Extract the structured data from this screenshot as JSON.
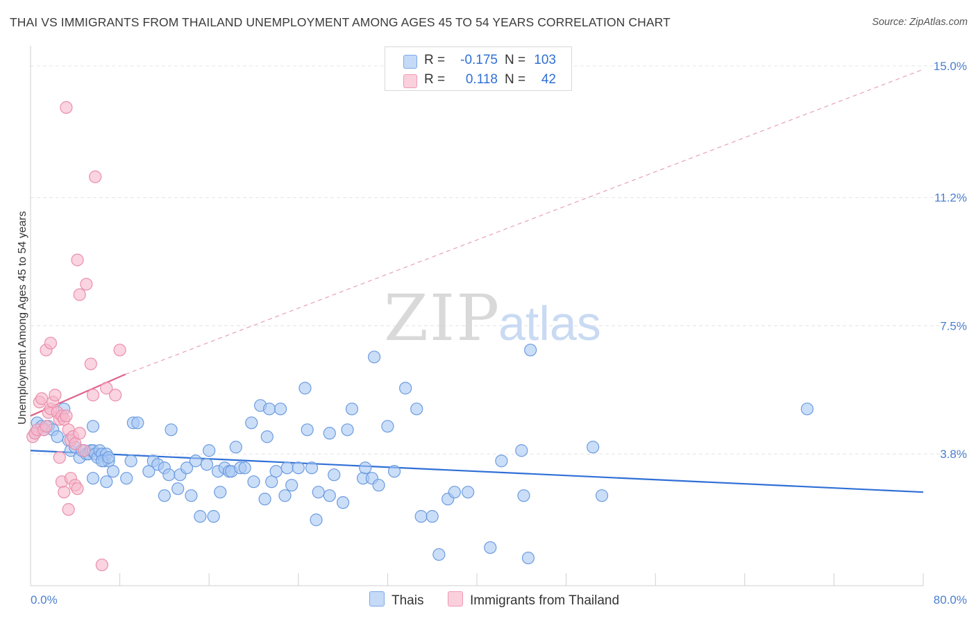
{
  "title": "THAI VS IMMIGRANTS FROM THAILAND UNEMPLOYMENT AMONG AGES 45 TO 54 YEARS CORRELATION CHART",
  "source": "Source: ZipAtlas.com",
  "watermark": {
    "zip": "ZIP",
    "atlas": "atlas"
  },
  "legend_top": [
    {
      "r_label": "R =",
      "r_value": "-0.175",
      "n_label": "N =",
      "n_value": "103",
      "color": "#a9c8f3"
    },
    {
      "r_label": "R =",
      "r_value": "0.118",
      "n_label": "N =",
      "n_value": "42",
      "color": "#f7b7cb"
    }
  ],
  "legend_bottom": [
    {
      "label": "Thais",
      "color": "#a9c8f3"
    },
    {
      "label": "Immigrants from Thailand",
      "color": "#f7b7cb"
    }
  ],
  "chart_data": {
    "type": "scatter",
    "title": "THAI VS IMMIGRANTS FROM THAILAND UNEMPLOYMENT AMONG AGES 45 TO 54 YEARS CORRELATION CHART",
    "xlabel": "",
    "ylabel": "Unemployment Among Ages 45 to 54 years",
    "xlim": [
      0,
      80
    ],
    "ylim": [
      0,
      15.5
    ],
    "x_tick_labels": [
      "0.0%",
      "80.0%"
    ],
    "y_ticks": [
      3.8,
      7.5,
      11.2,
      15.0
    ],
    "y_tick_labels": [
      "3.8%",
      "7.5%",
      "11.2%",
      "15.0%"
    ],
    "grid": true,
    "series": [
      {
        "name": "Thais",
        "color": "#a9c8f3",
        "stroke": "#6b9be0",
        "trend": {
          "x": [
            0,
            80
          ],
          "y": [
            3.9,
            2.7
          ],
          "color": "#2f6fd6",
          "dashed": false
        },
        "points": [
          [
            0.4,
            4.4
          ],
          [
            0.6,
            4.7
          ],
          [
            1.0,
            4.6
          ],
          [
            1.2,
            4.5
          ],
          [
            1.6,
            4.6
          ],
          [
            2.0,
            4.5
          ],
          [
            2.4,
            4.3
          ],
          [
            3.0,
            5.1
          ],
          [
            3.4,
            4.2
          ],
          [
            3.6,
            3.9
          ],
          [
            4.0,
            4.0
          ],
          [
            4.4,
            3.7
          ],
          [
            4.6,
            3.9
          ],
          [
            5.0,
            3.8
          ],
          [
            5.2,
            3.8
          ],
          [
            5.4,
            3.9
          ],
          [
            5.6,
            3.9
          ],
          [
            5.8,
            3.8
          ],
          [
            6.0,
            3.7
          ],
          [
            6.2,
            3.9
          ],
          [
            6.4,
            3.8
          ],
          [
            6.6,
            3.6
          ],
          [
            6.8,
            3.8
          ],
          [
            7.0,
            3.6
          ],
          [
            5.6,
            4.6
          ],
          [
            5.6,
            3.1
          ],
          [
            6.4,
            3.6
          ],
          [
            6.8,
            3.0
          ],
          [
            7.0,
            3.7
          ],
          [
            7.4,
            3.3
          ],
          [
            8.6,
            3.1
          ],
          [
            9.0,
            3.6
          ],
          [
            9.2,
            4.7
          ],
          [
            9.6,
            4.7
          ],
          [
            10.6,
            3.3
          ],
          [
            11.0,
            3.6
          ],
          [
            11.4,
            3.5
          ],
          [
            12.0,
            3.4
          ],
          [
            12.0,
            2.6
          ],
          [
            12.4,
            3.2
          ],
          [
            12.6,
            4.5
          ],
          [
            13.2,
            2.8
          ],
          [
            13.4,
            3.2
          ],
          [
            14.0,
            3.4
          ],
          [
            14.4,
            2.6
          ],
          [
            14.8,
            3.6
          ],
          [
            15.2,
            2.0
          ],
          [
            15.8,
            3.5
          ],
          [
            16.0,
            3.9
          ],
          [
            16.4,
            2.0
          ],
          [
            16.8,
            3.3
          ],
          [
            17.0,
            2.7
          ],
          [
            17.4,
            3.4
          ],
          [
            17.8,
            3.3
          ],
          [
            18.0,
            3.3
          ],
          [
            18.4,
            4.0
          ],
          [
            18.8,
            3.4
          ],
          [
            19.2,
            3.4
          ],
          [
            19.8,
            4.7
          ],
          [
            20.0,
            3.0
          ],
          [
            20.6,
            5.2
          ],
          [
            21.0,
            2.5
          ],
          [
            21.2,
            4.3
          ],
          [
            21.4,
            5.1
          ],
          [
            21.6,
            3.0
          ],
          [
            22.0,
            3.3
          ],
          [
            22.4,
            5.1
          ],
          [
            22.8,
            2.6
          ],
          [
            23.0,
            3.4
          ],
          [
            23.4,
            2.9
          ],
          [
            24.0,
            3.4
          ],
          [
            24.6,
            5.7
          ],
          [
            24.8,
            4.5
          ],
          [
            25.2,
            3.4
          ],
          [
            25.6,
            1.9
          ],
          [
            25.8,
            2.7
          ],
          [
            26.8,
            4.4
          ],
          [
            26.8,
            2.6
          ],
          [
            27.2,
            3.2
          ],
          [
            28.0,
            2.4
          ],
          [
            28.4,
            4.5
          ],
          [
            28.8,
            5.1
          ],
          [
            29.8,
            3.1
          ],
          [
            30.0,
            3.4
          ],
          [
            30.6,
            3.1
          ],
          [
            30.8,
            6.6
          ],
          [
            31.2,
            2.9
          ],
          [
            32.0,
            4.6
          ],
          [
            32.6,
            3.3
          ],
          [
            33.6,
            5.7
          ],
          [
            34.6,
            5.1
          ],
          [
            35.0,
            2.0
          ],
          [
            36.0,
            2.0
          ],
          [
            36.6,
            0.9
          ],
          [
            37.4,
            2.5
          ],
          [
            38.0,
            2.7
          ],
          [
            39.2,
            2.7
          ],
          [
            41.2,
            1.1
          ],
          [
            42.2,
            3.6
          ],
          [
            44.0,
            3.9
          ],
          [
            44.2,
            2.6
          ],
          [
            44.6,
            0.8
          ],
          [
            44.8,
            6.8
          ],
          [
            50.4,
            4.0
          ],
          [
            51.2,
            2.6
          ],
          [
            69.6,
            5.1
          ]
        ]
      },
      {
        "name": "Immigrants from Thailand",
        "color": "#f7b7cb",
        "stroke": "#ea8eab",
        "trend": {
          "x": [
            0,
            8.5
          ],
          "y": [
            4.9,
            6.1
          ],
          "color": "#e0628a",
          "dashed": false
        },
        "trend_extension": {
          "x": [
            8.5,
            80
          ],
          "y": [
            6.1,
            14.9
          ],
          "color": "#e8a0b6",
          "dashed": true
        },
        "points": [
          [
            0.2,
            4.3
          ],
          [
            0.4,
            4.4
          ],
          [
            0.6,
            4.5
          ],
          [
            0.8,
            5.3
          ],
          [
            1.0,
            5.4
          ],
          [
            1.2,
            4.5
          ],
          [
            1.4,
            4.6
          ],
          [
            1.6,
            5.0
          ],
          [
            1.8,
            5.1
          ],
          [
            2.0,
            5.3
          ],
          [
            2.2,
            5.5
          ],
          [
            2.4,
            5.0
          ],
          [
            2.6,
            4.8
          ],
          [
            2.8,
            4.9
          ],
          [
            3.0,
            4.8
          ],
          [
            3.2,
            4.9
          ],
          [
            3.4,
            4.5
          ],
          [
            3.6,
            4.2
          ],
          [
            3.8,
            4.3
          ],
          [
            4.0,
            4.1
          ],
          [
            4.4,
            4.4
          ],
          [
            4.8,
            3.9
          ],
          [
            2.6,
            3.7
          ],
          [
            2.8,
            3.0
          ],
          [
            3.0,
            2.7
          ],
          [
            3.4,
            2.2
          ],
          [
            3.6,
            3.1
          ],
          [
            4.0,
            2.9
          ],
          [
            4.2,
            2.8
          ],
          [
            1.4,
            6.8
          ],
          [
            1.8,
            7.0
          ],
          [
            3.2,
            13.8
          ],
          [
            4.2,
            9.4
          ],
          [
            4.4,
            8.4
          ],
          [
            5.0,
            8.7
          ],
          [
            5.4,
            6.4
          ],
          [
            5.8,
            11.8
          ],
          [
            5.6,
            5.5
          ],
          [
            6.8,
            5.7
          ],
          [
            7.6,
            5.5
          ],
          [
            8.0,
            6.8
          ],
          [
            6.4,
            0.6
          ]
        ]
      }
    ]
  }
}
